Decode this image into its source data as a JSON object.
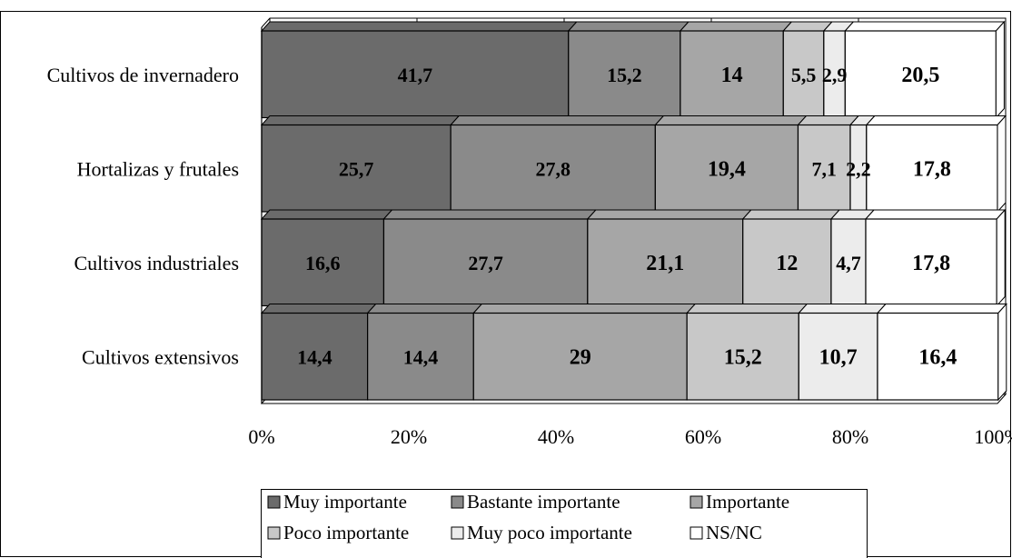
{
  "chart_data": {
    "type": "bar",
    "orientation": "horizontal",
    "stacked": "percent",
    "categories": [
      "Cultivos de invernadero",
      "Hortalizas y frutales",
      "Cultivos industriales",
      "Cultivos extensivos"
    ],
    "series": [
      {
        "name": "Muy importante",
        "color": "#6b6b6b",
        "values": [
          41.7,
          25.7,
          16.6,
          14.4
        ],
        "labels": [
          "41,7",
          "25,7",
          "16,6",
          "14,4"
        ]
      },
      {
        "name": "Bastante importante",
        "color": "#8a8a8a",
        "values": [
          15.2,
          27.8,
          27.7,
          14.4
        ],
        "labels": [
          "15,2",
          "27,8",
          "27,7",
          "14,4"
        ]
      },
      {
        "name": "Importante",
        "color": "#a6a6a6",
        "values": [
          14,
          19.4,
          21.1,
          29
        ],
        "labels": [
          "14",
          "19,4",
          "21,1",
          "29"
        ]
      },
      {
        "name": "Poco importante",
        "color": "#c8c8c8",
        "values": [
          5.5,
          7.1,
          12,
          15.2
        ],
        "labels": [
          "5,5",
          "7,1",
          "12",
          "15,2"
        ]
      },
      {
        "name": "Muy poco importante",
        "color": "#ececec",
        "values": [
          2.9,
          2.2,
          4.7,
          10.7
        ],
        "labels": [
          "2,9",
          "2,2",
          "4,7",
          "10,7"
        ]
      },
      {
        "name": "NS/NC",
        "color": "#ffffff",
        "values": [
          20.5,
          17.8,
          17.8,
          16.4
        ],
        "labels": [
          "20,5",
          "17,8",
          "17,8",
          "16,4"
        ]
      }
    ],
    "x_ticks": [
      "0%",
      "20%",
      "40%",
      "60%",
      "80%",
      "100%"
    ],
    "xlim": [
      0,
      100
    ],
    "grid": true,
    "legend_position": "bottom",
    "title": "",
    "xlabel": "",
    "ylabel": ""
  }
}
